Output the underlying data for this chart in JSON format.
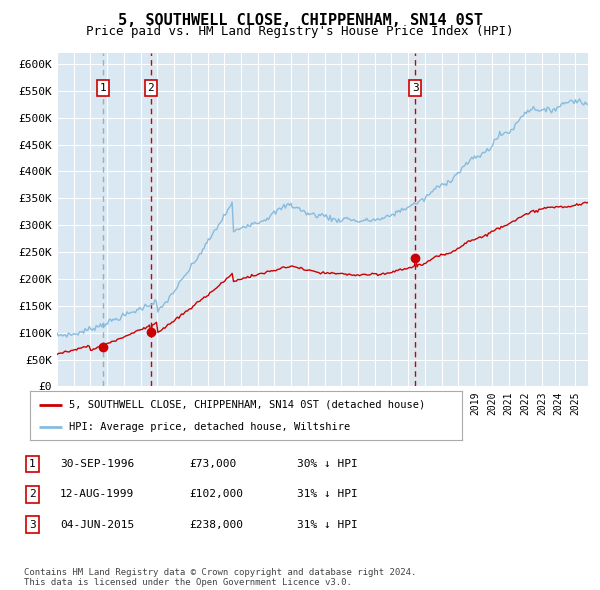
{
  "title": "5, SOUTHWELL CLOSE, CHIPPENHAM, SN14 0ST",
  "subtitle": "Price paid vs. HM Land Registry's House Price Index (HPI)",
  "ylim": [
    0,
    620000
  ],
  "yticks": [
    0,
    50000,
    100000,
    150000,
    200000,
    250000,
    300000,
    350000,
    400000,
    450000,
    500000,
    550000,
    600000
  ],
  "ytick_labels": [
    "£0",
    "£50K",
    "£100K",
    "£150K",
    "£200K",
    "£250K",
    "£300K",
    "£350K",
    "£400K",
    "£450K",
    "£500K",
    "£550K",
    "£600K"
  ],
  "xlim_start": 1994.0,
  "xlim_end": 2025.75,
  "transactions": [
    {
      "date": 1996.75,
      "price": 73000,
      "label": "1"
    },
    {
      "date": 1999.62,
      "price": 102000,
      "label": "2"
    },
    {
      "date": 2015.42,
      "price": 238000,
      "label": "3"
    }
  ],
  "legend_entries": [
    {
      "label": "5, SOUTHWELL CLOSE, CHIPPENHAM, SN14 0ST (detached house)",
      "color": "#cc0000"
    },
    {
      "label": "HPI: Average price, detached house, Wiltshire",
      "color": "#88bbdd"
    }
  ],
  "table_rows": [
    {
      "num": "1",
      "date": "30-SEP-1996",
      "price": "£73,000",
      "note": "30% ↓ HPI"
    },
    {
      "num": "2",
      "date": "12-AUG-1999",
      "price": "£102,000",
      "note": "31% ↓ HPI"
    },
    {
      "num": "3",
      "date": "04-JUN-2015",
      "price": "£238,000",
      "note": "31% ↓ HPI"
    }
  ],
  "footer": "Contains HM Land Registry data © Crown copyright and database right 2024.\nThis data is licensed under the Open Government Licence v3.0.",
  "hpi_color": "#88bbdd",
  "prop_color": "#cc0000",
  "shade_color": "#d8e8f4",
  "grid_color": "#ffffff",
  "plot_bg": "#dce8f0"
}
